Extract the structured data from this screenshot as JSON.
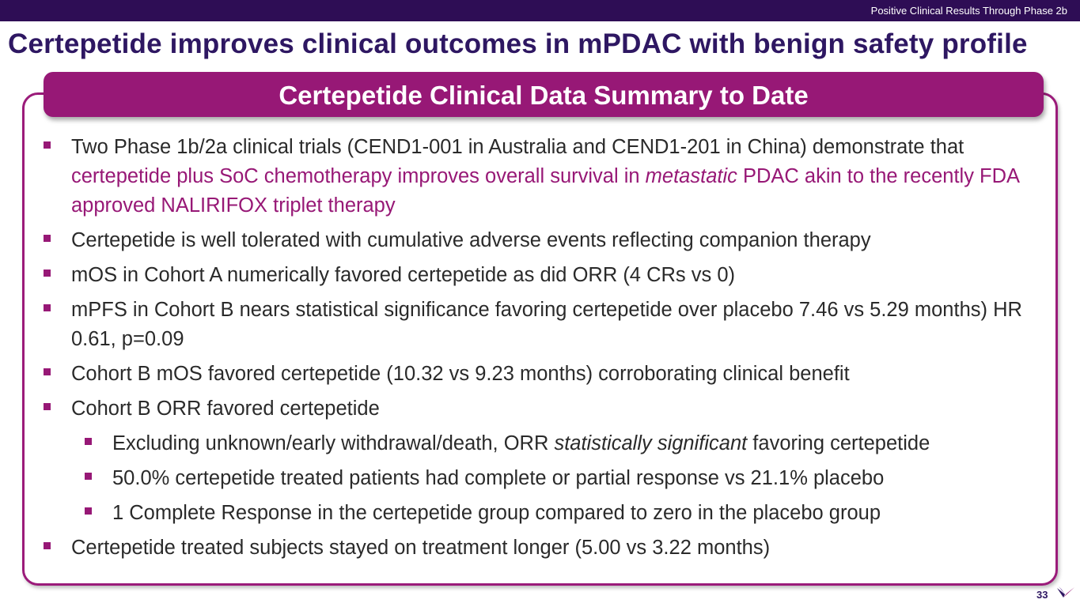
{
  "header": {
    "section_label": "Positive Clinical Results Through Phase 2b"
  },
  "slide": {
    "title": "Certepetide improves clinical outcomes in mPDAC with benign safety profile",
    "banner": "Certepetide Clinical Data Summary to Date",
    "page_number": "33"
  },
  "bullets": [
    {
      "level": 1,
      "plain_start": "Two Phase 1b/2a clinical trials (CEND1-001 in Australia and CEND1-201 in China) demonstrate that ",
      "highlight_start": "certepetide plus SoC chemotherapy improves overall survival in ",
      "highlight_italic": "metastatic",
      "highlight_end": " PDAC akin to the recently FDA approved NALIRIFOX triplet therapy"
    },
    {
      "level": 1,
      "text": "Certepetide is well tolerated with cumulative adverse events reflecting companion therapy"
    },
    {
      "level": 1,
      "text": "mOS in Cohort A numerically favored certepetide as did ORR (4 CRs vs 0)"
    },
    {
      "level": 1,
      "text": "mPFS in Cohort B nears statistical significance favoring certepetide over placebo 7.46 vs 5.29 months) HR 0.61, p=0.09"
    },
    {
      "level": 1,
      "text": "Cohort B mOS favored certepetide (10.32 vs 9.23 months) corroborating clinical benefit"
    },
    {
      "level": 1,
      "text": "Cohort B ORR favored certepetide"
    },
    {
      "level": 2,
      "before": "Excluding unknown/early withdrawal/death, ORR ",
      "italic": "statistically significant",
      "after": " favoring certepetide"
    },
    {
      "level": 2,
      "text": "50.0% certepetide treated patients had complete or partial response vs 21.1% placebo"
    },
    {
      "level": 2,
      "text": "1 Complete Response in the certepetide group compared to zero in the placebo group"
    },
    {
      "level": 1,
      "text": "Certepetide treated subjects stayed on treatment longer (5.00 vs 3.22 months)"
    }
  ],
  "icons": {
    "bullet_marker": "square-bullet-icon",
    "logo": "company-logo-icon"
  },
  "colors": {
    "header_bar": "#2e0d55",
    "title": "#2e1762",
    "accent": "#971876",
    "body_text": "#2a2a2a"
  }
}
